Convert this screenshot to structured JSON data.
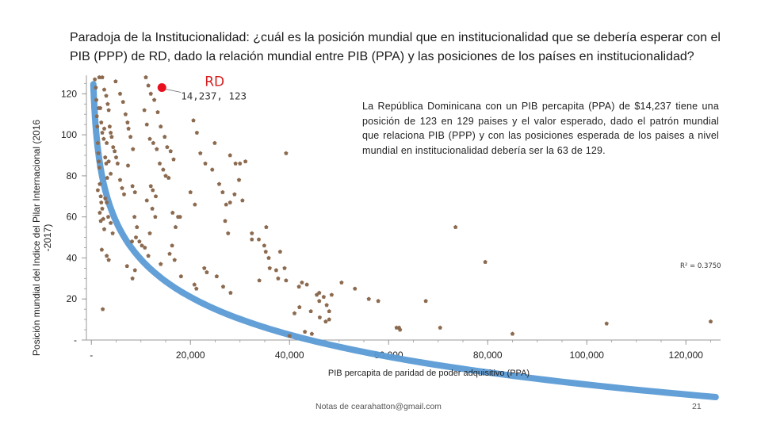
{
  "slide": {
    "title": "Paradoja de la Institucionalidad: ¿cuál es la posición mundial que en institucionalidad que se debería esperar con el PIB (PPP) de RD, dado la relación mundial entre PIB (PPA) y las posiciones de los países en institucionalidad?",
    "footer_note": "Notas de cearahatton@gmail.com",
    "page_number": "21",
    "annotation": "La República Dominicana con un PIB percapita (PPA) de $14,237 tiene una posición de 123 en 129 paises y el valor esperado, dado el patrón mundial que relaciona PIB (PPP) y con las posiciones esperada de los paises a nivel mundial en institucionalidad debería ser la 63 de 129."
  },
  "colors": {
    "points": "#8B6A4F",
    "trend": "#5B9BD5",
    "highlight": "#E8101E",
    "axis": "#9a9a9a",
    "label_red": "#D42020"
  },
  "chart_data": {
    "type": "scatter",
    "title": "Paradoja de la Institucionalidad",
    "xlabel": "PIB percapita de paridad de poder adquisitivo (PPA)",
    "ylabel_line1": "Posición mundial del Indice del Pilar Internacional (2016",
    "ylabel_line2": "-2017)",
    "xlim": [
      -1000,
      127000
    ],
    "ylim": [
      0,
      129
    ],
    "x_ticks": [
      {
        "value": 0,
        "label": "-"
      },
      {
        "value": 20000,
        "label": "20,000"
      },
      {
        "value": 40000,
        "label": "40,000"
      },
      {
        "value": 60000,
        "label": "60,000"
      },
      {
        "value": 80000,
        "label": "80,000"
      },
      {
        "value": 100000,
        "label": "100,000"
      },
      {
        "value": 120000,
        "label": "120,000"
      }
    ],
    "y_ticks": [
      {
        "value": 0,
        "label": "-"
      },
      {
        "value": 20,
        "label": "20"
      },
      {
        "value": 40,
        "label": "40"
      },
      {
        "value": 60,
        "label": "60"
      },
      {
        "value": 80,
        "label": "80"
      },
      {
        "value": 100,
        "label": "100"
      },
      {
        "value": 120,
        "label": "120"
      }
    ],
    "trendline": {
      "type": "logarithmic",
      "label": "R² = 0.3750",
      "a": 283.4,
      "b": -26.5,
      "x_start": 400,
      "x_end": 126000
    },
    "highlight": {
      "label": "RD",
      "value_label": "14,237, 123",
      "x": 14237,
      "y": 123
    },
    "points": [
      [
        700,
        127
      ],
      [
        900,
        123
      ],
      [
        1000,
        117
      ],
      [
        1100,
        109
      ],
      [
        1200,
        104
      ],
      [
        1300,
        96
      ],
      [
        1400,
        91
      ],
      [
        1500,
        87
      ],
      [
        1600,
        84
      ],
      [
        1700,
        76
      ],
      [
        1900,
        70
      ],
      [
        2000,
        67
      ],
      [
        2200,
        64
      ],
      [
        2400,
        59
      ],
      [
        2600,
        54
      ],
      [
        1500,
        113
      ],
      [
        1800,
        113
      ],
      [
        2000,
        106
      ],
      [
        2200,
        101
      ],
      [
        2500,
        98
      ],
      [
        2800,
        89
      ],
      [
        3000,
        86
      ],
      [
        3200,
        79
      ],
      [
        1300,
        73
      ],
      [
        1700,
        62
      ],
      [
        1900,
        58
      ],
      [
        2100,
        44
      ],
      [
        2300,
        15
      ],
      [
        1600,
        128
      ],
      [
        2200,
        128
      ],
      [
        2600,
        122
      ],
      [
        3000,
        119
      ],
      [
        3300,
        115
      ],
      [
        3500,
        112
      ],
      [
        3700,
        104
      ],
      [
        3900,
        101
      ],
      [
        4100,
        99
      ],
      [
        4400,
        94
      ],
      [
        4700,
        92
      ],
      [
        5000,
        89
      ],
      [
        5300,
        86
      ],
      [
        5800,
        78
      ],
      [
        6200,
        74
      ],
      [
        6600,
        71
      ],
      [
        2600,
        103
      ],
      [
        3100,
        96
      ],
      [
        3500,
        87
      ],
      [
        3900,
        81
      ],
      [
        2800,
        69
      ],
      [
        3100,
        67
      ],
      [
        3400,
        60
      ],
      [
        3900,
        57
      ],
      [
        4300,
        52
      ],
      [
        3100,
        41
      ],
      [
        3500,
        39
      ],
      [
        4900,
        126
      ],
      [
        5800,
        120
      ],
      [
        6400,
        116
      ],
      [
        6900,
        110
      ],
      [
        7300,
        106
      ],
      [
        7500,
        103
      ],
      [
        7900,
        99
      ],
      [
        8400,
        93
      ],
      [
        7400,
        85
      ],
      [
        8300,
        75
      ],
      [
        8800,
        72
      ],
      [
        8700,
        60
      ],
      [
        9200,
        55
      ],
      [
        9000,
        50
      ],
      [
        8200,
        48
      ],
      [
        9700,
        48
      ],
      [
        7200,
        36
      ],
      [
        8800,
        34
      ],
      [
        8300,
        30
      ],
      [
        11000,
        128
      ],
      [
        11500,
        124
      ],
      [
        12000,
        120
      ],
      [
        12700,
        117
      ],
      [
        13400,
        111
      ],
      [
        14000,
        104
      ],
      [
        14800,
        99
      ],
      [
        15300,
        94
      ],
      [
        16000,
        92
      ],
      [
        16600,
        88
      ],
      [
        10700,
        112
      ],
      [
        11200,
        105
      ],
      [
        11800,
        98
      ],
      [
        12500,
        96
      ],
      [
        13200,
        93
      ],
      [
        13800,
        86
      ],
      [
        12000,
        75
      ],
      [
        12400,
        73
      ],
      [
        13000,
        70
      ],
      [
        11200,
        68
      ],
      [
        12300,
        64
      ],
      [
        12900,
        60
      ],
      [
        11800,
        52
      ],
      [
        10200,
        46
      ],
      [
        10800,
        45
      ],
      [
        11500,
        41
      ],
      [
        14500,
        83
      ],
      [
        15000,
        80
      ],
      [
        15600,
        79
      ],
      [
        16400,
        62
      ],
      [
        17500,
        60
      ],
      [
        17900,
        60
      ],
      [
        17000,
        55
      ],
      [
        16300,
        46
      ],
      [
        15800,
        42
      ],
      [
        16800,
        39
      ],
      [
        18100,
        31
      ],
      [
        14000,
        37
      ],
      [
        20600,
        107
      ],
      [
        21300,
        101
      ],
      [
        20000,
        72
      ],
      [
        20900,
        66
      ],
      [
        22000,
        91
      ],
      [
        23000,
        86
      ],
      [
        24400,
        83
      ],
      [
        25800,
        76
      ],
      [
        26500,
        72
      ],
      [
        27200,
        66
      ],
      [
        22800,
        35
      ],
      [
        23300,
        33
      ],
      [
        25300,
        31
      ],
      [
        20800,
        27
      ],
      [
        21200,
        25
      ],
      [
        24900,
        96
      ],
      [
        28000,
        90
      ],
      [
        29100,
        86
      ],
      [
        30000,
        86
      ],
      [
        29800,
        78
      ],
      [
        28900,
        71
      ],
      [
        30500,
        68
      ],
      [
        28000,
        67
      ],
      [
        27000,
        58
      ],
      [
        27600,
        52
      ],
      [
        26600,
        26
      ],
      [
        28100,
        23
      ],
      [
        31100,
        87
      ],
      [
        32400,
        52
      ],
      [
        32400,
        49
      ],
      [
        33800,
        49
      ],
      [
        34900,
        46
      ],
      [
        35200,
        43
      ],
      [
        35300,
        55
      ],
      [
        33900,
        29
      ],
      [
        35800,
        40
      ],
      [
        37300,
        34
      ],
      [
        38100,
        43
      ],
      [
        39300,
        91
      ],
      [
        36000,
        35
      ],
      [
        37700,
        30
      ],
      [
        39000,
        35
      ],
      [
        39300,
        29
      ],
      [
        40000,
        2
      ],
      [
        41000,
        13
      ],
      [
        42500,
        28
      ],
      [
        42000,
        16
      ],
      [
        43500,
        27
      ],
      [
        44300,
        14
      ],
      [
        45500,
        22
      ],
      [
        46000,
        19
      ],
      [
        46900,
        21
      ],
      [
        47500,
        17
      ],
      [
        48000,
        14
      ],
      [
        48500,
        22
      ],
      [
        46100,
        11
      ],
      [
        47300,
        9
      ],
      [
        48000,
        10
      ],
      [
        41900,
        26
      ],
      [
        43100,
        4
      ],
      [
        44500,
        3
      ],
      [
        46000,
        23
      ],
      [
        50500,
        28
      ],
      [
        53200,
        25
      ],
      [
        56000,
        20
      ],
      [
        57900,
        19
      ],
      [
        61600,
        6
      ],
      [
        62100,
        6
      ],
      [
        62300,
        5
      ],
      [
        67500,
        19
      ],
      [
        70400,
        6
      ],
      [
        73500,
        55
      ],
      [
        79500,
        38
      ],
      [
        85000,
        3
      ],
      [
        104000,
        8
      ],
      [
        125000,
        9
      ]
    ]
  }
}
